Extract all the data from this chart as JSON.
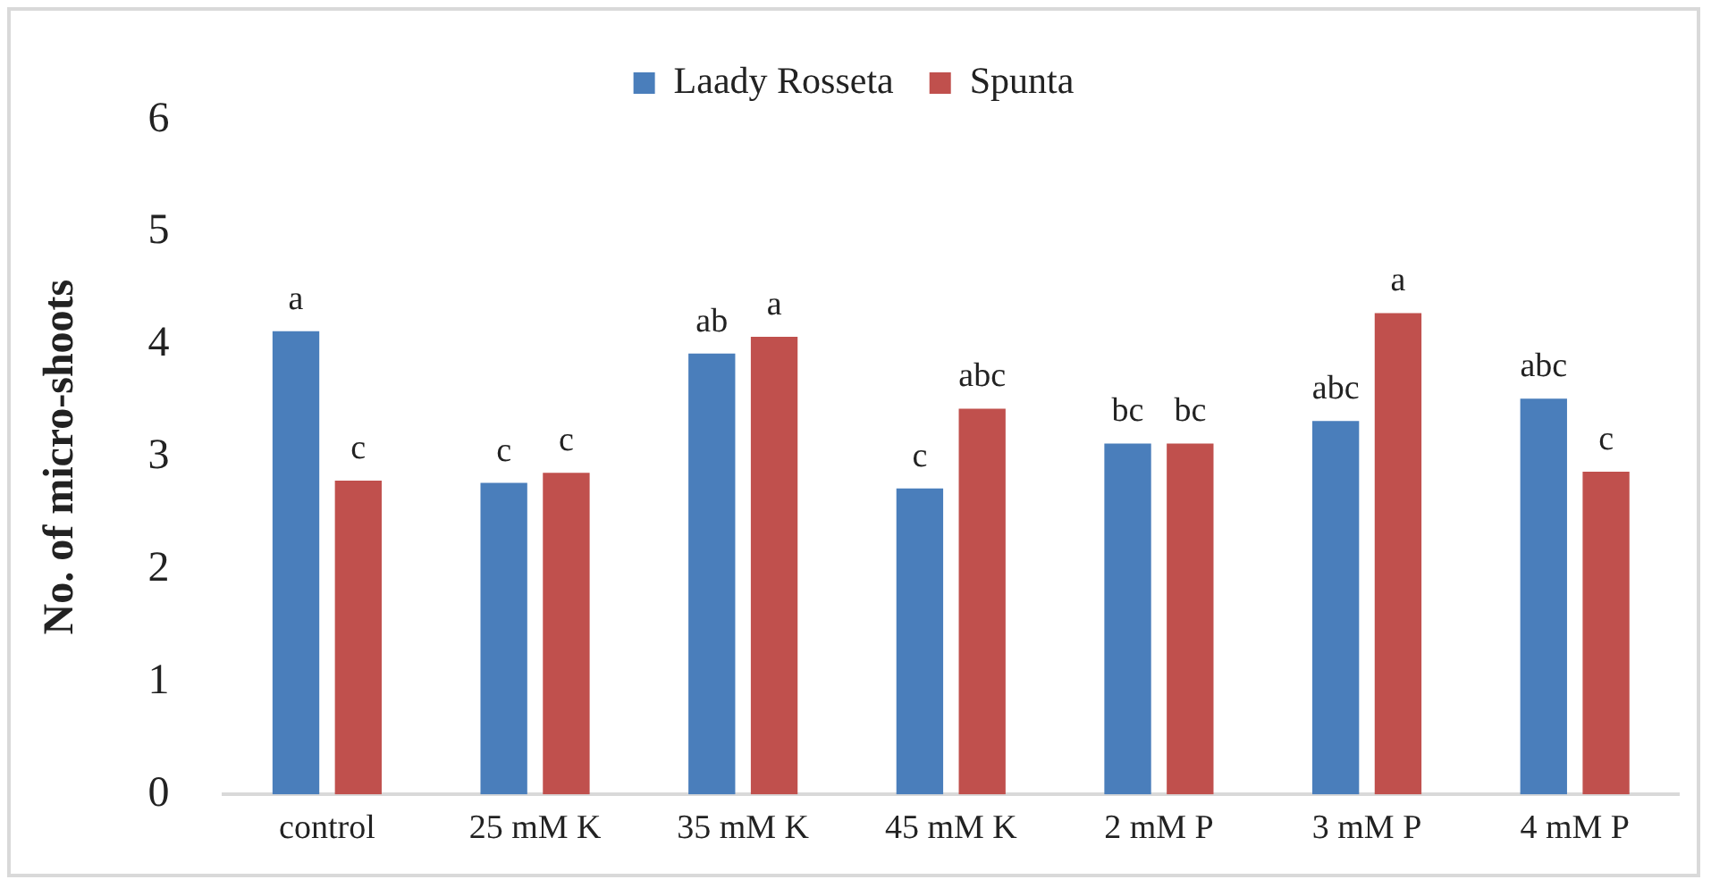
{
  "chart_data": {
    "type": "bar",
    "ylabel": "No. of micro-shoots",
    "categories": [
      "control",
      "25 mM K",
      "35 mM K",
      "45 mM K",
      "2 mM P",
      "3 mM P",
      "4 mM P"
    ],
    "series": [
      {
        "name": "Laady Rosseta",
        "color": "#4a7ebb",
        "values": [
          4.12,
          2.77,
          3.92,
          2.72,
          3.12,
          3.32,
          3.52
        ]
      },
      {
        "name": "Spunta",
        "color": "#c0504d",
        "values": [
          2.79,
          2.86,
          4.07,
          3.43,
          3.12,
          4.28,
          2.87
        ]
      }
    ],
    "ylim": [
      0,
      6
    ],
    "yticks": [
      0,
      1,
      2,
      3,
      4,
      5,
      6
    ],
    "grid": false,
    "legend": "top",
    "annotations": [
      {
        "text": "a",
        "x": "control",
        "y": 4.12
      },
      {
        "text": "c",
        "x": "control",
        "y": 2.79
      },
      {
        "text": "c",
        "x": "25 mM K",
        "y": 2.77
      },
      {
        "text": "c",
        "x": "25 mM K",
        "y": 2.86
      },
      {
        "text": "ab",
        "x": "35 mM K",
        "y": 3.92
      },
      {
        "text": "a",
        "x": "35 mM K",
        "y": 4.07
      },
      {
        "text": "c",
        "x": "45 mM K",
        "y": 2.72
      },
      {
        "text": "abc",
        "x": "45 mM K",
        "y": 3.43
      },
      {
        "text": "bc",
        "x": "2 mM P",
        "y": 3.12
      },
      {
        "text": "bc",
        "x": "2 mM P",
        "y": 3.12
      },
      {
        "text": "abc",
        "x": "3 mM P",
        "y": 3.32
      },
      {
        "text": "a",
        "x": "3 mM P",
        "y": 4.28
      },
      {
        "text": "abc",
        "x": "4 mM P",
        "y": 3.52
      },
      {
        "text": "c",
        "x": "4 mM P",
        "y": 2.87
      }
    ]
  }
}
